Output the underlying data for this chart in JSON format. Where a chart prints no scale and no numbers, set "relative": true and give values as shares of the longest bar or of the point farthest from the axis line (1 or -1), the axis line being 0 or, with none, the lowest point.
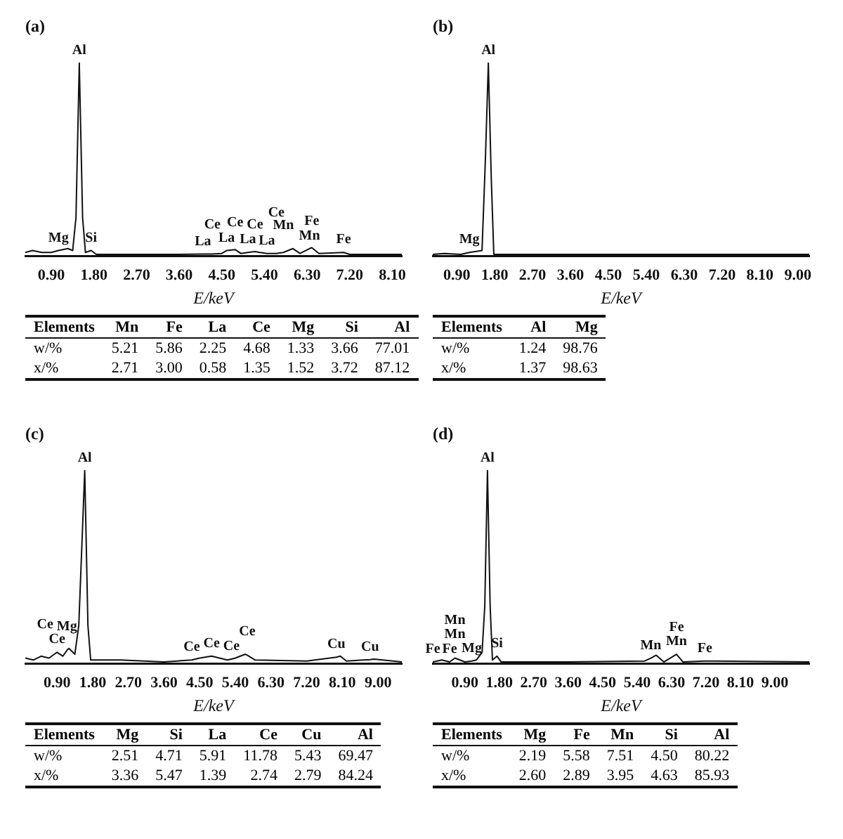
{
  "chart_data": [
    {
      "type": "line",
      "title": "(a)",
      "xlabel": "E/keV",
      "relative": true,
      "tick_labels": "x",
      "grid": false,
      "marker": "none",
      "legend": false,
      "xlim": [
        0.35,
        8.3
      ],
      "xticks": [
        {
          "value": 0.9,
          "label": "0.90"
        },
        {
          "value": 1.8,
          "label": "1.80"
        },
        {
          "value": 2.7,
          "label": "2.70"
        },
        {
          "value": 3.6,
          "label": "3.60"
        },
        {
          "value": 4.5,
          "label": "4.50"
        },
        {
          "value": 5.4,
          "label": "5.40"
        },
        {
          "value": 6.3,
          "label": "6.30"
        },
        {
          "value": 7.2,
          "label": "7.20"
        },
        {
          "value": 8.1,
          "label": "8.10"
        }
      ],
      "series": [
        {
          "color": "#111111",
          "x": [
            0.35,
            0.5,
            0.7,
            0.9,
            1.05,
            1.25,
            1.35,
            1.42,
            1.49,
            1.56,
            1.62,
            1.74,
            1.85,
            2.7,
            3.6,
            4.1,
            4.3,
            4.5,
            4.6,
            4.78,
            4.9,
            5.05,
            5.2,
            5.3,
            5.45,
            5.65,
            5.8,
            5.9,
            6.0,
            6.15,
            6.35,
            6.4,
            6.55,
            7.07,
            7.2,
            8.3
          ],
          "values": [
            0.02,
            0.03,
            0.02,
            0.02,
            0.03,
            0.04,
            0.03,
            0.2,
            1,
            0.2,
            0.02,
            0.03,
            0.01,
            0.01,
            0.01,
            0.012,
            0.012,
            0.015,
            0.03,
            0.035,
            0.015,
            0.02,
            0.025,
            0.02,
            0.015,
            0.015,
            0.02,
            0.03,
            0.04,
            0.015,
            0.04,
            0.045,
            0.015,
            0.02,
            0.01,
            0.01
          ]
        }
      ],
      "annotations": [
        {
          "text": "Al",
          "x": 1.49,
          "y": 1
        },
        {
          "text": "Mg",
          "x": 1.05,
          "y": 0.03
        },
        {
          "text": "Si",
          "x": 1.74,
          "y": 0.03
        },
        {
          "text": "La",
          "x": 4.1,
          "y": 0.012
        },
        {
          "text": "La",
          "x": 4.6,
          "y": 0.03
        },
        {
          "text": "La",
          "x": 5.05,
          "y": 0.02
        },
        {
          "text": "La",
          "x": 5.45,
          "y": 0.015
        },
        {
          "text": "Mn",
          "x": 5.8,
          "y": 0.02
        },
        {
          "text": "Mn",
          "x": 6.35,
          "y": 0.04
        },
        {
          "text": "Fe",
          "x": 7.07,
          "y": 0.02
        },
        {
          "text": "Ce",
          "x": 4.3,
          "y": 0.012
        },
        {
          "text": "Ce",
          "x": 4.78,
          "y": 0.035
        },
        {
          "text": "Ce",
          "x": 5.2,
          "y": 0.025
        },
        {
          "text": "Ce",
          "x": 5.65,
          "y": 0.015
        },
        {
          "text": "Fe",
          "x": 6.4,
          "y": 0.045
        },
        "Elements Mn Fe La Ce Mg Si Al",
        "w/% 5.21 5.86 2.25 4.68 1.33 3.66 77.01",
        "x/% 2.71 3.00 0.58 1.35 1.52 3.72 87.12"
      ]
    },
    {
      "type": "line",
      "title": "(b)",
      "xlabel": "E/keV",
      "relative": true,
      "tick_labels": "x",
      "grid": false,
      "marker": "none",
      "legend": false,
      "xlim": [
        0.33,
        9.27
      ],
      "xticks": [
        {
          "value": 0.9,
          "label": "0.90"
        },
        {
          "value": 1.8,
          "label": "1.80"
        },
        {
          "value": 2.7,
          "label": "2.70"
        },
        {
          "value": 3.6,
          "label": "3.60"
        },
        {
          "value": 4.5,
          "label": "4.50"
        },
        {
          "value": 5.4,
          "label": "5.40"
        },
        {
          "value": 6.3,
          "label": "6.30"
        },
        {
          "value": 7.2,
          "label": "7.20"
        },
        {
          "value": 8.1,
          "label": "8.10"
        },
        {
          "value": 9.0,
          "label": "9.00"
        }
      ],
      "series": [
        {
          "color": "#111111",
          "x": [
            0.33,
            0.6,
            1.0,
            1.2,
            1.5,
            1.58,
            1.65,
            1.72,
            1.78,
            3.0,
            9.27
          ],
          "values": [
            0.01,
            0.015,
            0.01,
            0.02,
            0.03,
            0.5,
            1,
            0.4,
            0.01,
            0.01,
            0.01
          ]
        }
      ],
      "annotations": [
        {
          "text": "Al",
          "x": 1.65,
          "y": 1
        },
        {
          "text": "Mg",
          "x": 1.2,
          "y": 0.02
        },
        "Elements Al Mg",
        "w/% 1.24 98.76",
        "x/% 1.37 98.63"
      ]
    },
    {
      "type": "line",
      "title": "(c)",
      "xlabel": "E/keV",
      "relative": true,
      "tick_labels": "x",
      "grid": false,
      "marker": "none",
      "legend": false,
      "xlim": [
        0.1,
        9.6
      ],
      "xticks": [
        {
          "value": 0.9,
          "label": "0.90"
        },
        {
          "value": 1.8,
          "label": "1.80"
        },
        {
          "value": 2.7,
          "label": "2.70"
        },
        {
          "value": 3.6,
          "label": "3.60"
        },
        {
          "value": 4.5,
          "label": "4.50"
        },
        {
          "value": 5.4,
          "label": "5.40"
        },
        {
          "value": 6.3,
          "label": "6.30"
        },
        {
          "value": 7.2,
          "label": "7.20"
        },
        {
          "value": 8.1,
          "label": "8.10"
        },
        {
          "value": 9.0,
          "label": "9.00"
        }
      ],
      "series": [
        {
          "color": "#111111",
          "x": [
            0.1,
            0.3,
            0.5,
            0.6,
            0.7,
            0.9,
            1.05,
            1.15,
            1.2,
            1.35,
            1.45,
            1.6,
            1.68,
            1.75,
            2.5,
            3.6,
            4.3,
            4.5,
            4.8,
            5.2,
            5.3,
            5.4,
            5.65,
            5.7,
            5.9,
            7.2,
            7.95,
            8.05,
            8.2,
            8.8,
            8.9,
            9.6
          ],
          "values": [
            0.03,
            0.02,
            0.04,
            0.035,
            0.03,
            0.06,
            0.04,
            0.07,
            0.08,
            0.05,
            0.2,
            1,
            0.2,
            0.02,
            0.02,
            0.01,
            0.02,
            0.03,
            0.04,
            0.02,
            0.025,
            0.03,
            0.05,
            0.045,
            0.02,
            0.015,
            0.035,
            0.04,
            0.015,
            0.022,
            0.025,
            0.01
          ]
        }
      ],
      "annotations": [
        {
          "text": "Al",
          "x": 1.6,
          "y": 1
        },
        {
          "text": "Ce",
          "x": 0.9,
          "y": 0.06
        },
        {
          "text": "Ce",
          "x": 0.6,
          "y": 0.035
        },
        {
          "text": "Mg",
          "x": 1.15,
          "y": 0.07
        },
        {
          "text": "Ce",
          "x": 4.3,
          "y": 0.02
        },
        {
          "text": "Ce",
          "x": 4.8,
          "y": 0.04
        },
        {
          "text": "Ce",
          "x": 5.3,
          "y": 0.025
        },
        {
          "text": "Ce",
          "x": 5.7,
          "y": 0.045
        },
        {
          "text": "Cu",
          "x": 7.95,
          "y": 0.035
        },
        {
          "text": "Cu",
          "x": 8.8,
          "y": 0.022
        },
        "Elements Mg Si La Ce Cu Al",
        "w/% 2.51 4.71 5.91 11.78 5.43 69.47",
        "x/% 3.36 5.47 1.39 2.74 2.79 84.24"
      ]
    },
    {
      "type": "line",
      "title": "(d)",
      "xlabel": "E/keV",
      "relative": true,
      "tick_labels": "x",
      "grid": false,
      "marker": "none",
      "legend": false,
      "xlim": [
        0.06,
        9.9
      ],
      "xticks": [
        {
          "value": 0.9,
          "label": "0.90"
        },
        {
          "value": 1.8,
          "label": "1.80"
        },
        {
          "value": 2.7,
          "label": "2.70"
        },
        {
          "value": 3.6,
          "label": "3.60"
        },
        {
          "value": 4.5,
          "label": "4.50"
        },
        {
          "value": 5.4,
          "label": "5.40"
        },
        {
          "value": 6.3,
          "label": "6.30"
        },
        {
          "value": 7.2,
          "label": "7.20"
        },
        {
          "value": 8.1,
          "label": "8.10"
        },
        {
          "value": 9.0,
          "label": "9.00"
        }
      ],
      "series": [
        {
          "color": "#111111",
          "x": [
            0.06,
            0.3,
            0.5,
            0.64,
            0.9,
            1.08,
            1.2,
            1.35,
            1.42,
            1.49,
            1.56,
            1.62,
            1.74,
            1.85,
            3.6,
            5.6,
            5.76,
            5.9,
            6.1,
            6.43,
            6.6,
            7.17,
            9.9
          ],
          "values": [
            0.01,
            0.02,
            0.01,
            0.03,
            0.01,
            0.015,
            0.02,
            0.06,
            0.3,
            1,
            0.3,
            0.02,
            0.04,
            0.01,
            0.01,
            0.015,
            0.03,
            0.045,
            0.01,
            0.05,
            0.01,
            0.015,
            0.01
          ]
        }
      ],
      "annotations": [
        {
          "text": "Al",
          "x": 1.49,
          "y": 1
        },
        {
          "text": "Fe",
          "x": 0.06,
          "y": 0.01
        },
        {
          "text": "Fe",
          "x": 0.5,
          "y": 0.01
        },
        {
          "text": "Mn",
          "x": 0.64,
          "y": 0.03
        },
        {
          "text": "Mn",
          "x": 0.64,
          "y": 0.03
        },
        {
          "text": "Mg",
          "x": 1.08,
          "y": 0.015
        },
        {
          "text": "Si",
          "x": 1.74,
          "y": 0.04
        },
        {
          "text": "Mn",
          "x": 5.76,
          "y": 0.03
        },
        {
          "text": "Mn",
          "x": 6.43,
          "y": 0.05
        },
        {
          "text": "Fe",
          "x": 6.43,
          "y": 0.05
        },
        {
          "text": "Fe",
          "x": 7.17,
          "y": 0.015
        },
        "Elements Mg Fe Mn Si Al",
        "w/% 2.19 5.58 7.51 4.50 80.22",
        "x/% 2.60 2.89 3.95 4.63 85.93"
      ]
    }
  ]
}
